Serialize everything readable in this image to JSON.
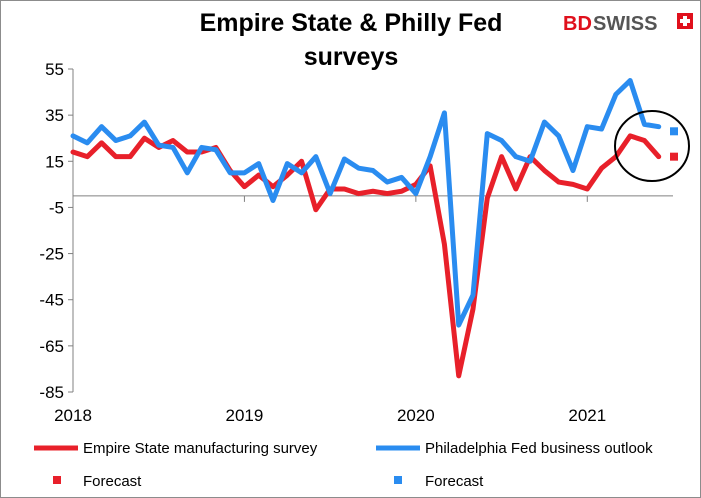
{
  "logo": {
    "brand_part1": "BD",
    "brand_part2": "SWISS"
  },
  "colors": {
    "empire": "#e8202a",
    "philly": "#2a8cf0",
    "annotation": "#000000"
  },
  "chart_data": {
    "type": "line",
    "title_lines": [
      "Empire State & Philly Fed",
      "surveys"
    ],
    "x_axis": {
      "ticks": [
        "2018",
        "2019",
        "2020",
        "2021"
      ],
      "range": [
        "2018-01",
        "2021-07"
      ]
    },
    "y_axis": {
      "ticks": [
        "55",
        "35",
        "15",
        "-5",
        "-25",
        "-45",
        "-65",
        "-85"
      ],
      "range": [
        -85,
        55
      ]
    },
    "x": [
      "2018-01",
      "2018-02",
      "2018-03",
      "2018-04",
      "2018-05",
      "2018-06",
      "2018-07",
      "2018-08",
      "2018-09",
      "2018-10",
      "2018-11",
      "2018-12",
      "2019-01",
      "2019-02",
      "2019-03",
      "2019-04",
      "2019-05",
      "2019-06",
      "2019-07",
      "2019-08",
      "2019-09",
      "2019-10",
      "2019-11",
      "2019-12",
      "2020-01",
      "2020-02",
      "2020-03",
      "2020-04",
      "2020-05",
      "2020-06",
      "2020-07",
      "2020-08",
      "2020-09",
      "2020-10",
      "2020-11",
      "2020-12",
      "2021-01",
      "2021-02",
      "2021-03",
      "2021-04",
      "2021-05",
      "2021-06"
    ],
    "series": [
      {
        "name": "Empire State manufacturing survey",
        "color": "#e8202a",
        "values": [
          19,
          17,
          23,
          17,
          17,
          25,
          21,
          24,
          19,
          19,
          21,
          11,
          4,
          9,
          4,
          9,
          15,
          -6,
          3,
          3,
          1,
          2,
          1,
          2,
          5,
          13,
          -21,
          -78,
          -49,
          -1,
          17,
          3,
          17,
          11,
          6,
          5,
          3,
          12,
          17,
          26,
          24,
          17
        ]
      },
      {
        "name": "Philadelphia Fed business outlook",
        "color": "#2a8cf0",
        "values": [
          26,
          23,
          30,
          24,
          26,
          32,
          22,
          21,
          10,
          21,
          20,
          10,
          10,
          14,
          -2,
          14,
          10,
          17,
          1,
          16,
          12,
          11,
          6,
          8,
          1,
          17,
          36,
          -56,
          -43,
          27,
          24,
          17,
          15,
          32,
          26,
          11,
          30,
          29,
          44,
          50,
          31,
          30
        ]
      }
    ],
    "forecast": [
      {
        "name": "Forecast",
        "series": "Empire State manufacturing survey",
        "x": "2021-07",
        "value": 17,
        "color": "#e8202a"
      },
      {
        "name": "Forecast",
        "series": "Philadelphia Fed business outlook",
        "x": "2021-07",
        "value": 28,
        "color": "#2a8cf0"
      }
    ],
    "annotation": "black ellipse circling both forecast points",
    "legend": {
      "placement": "bottom",
      "entries": [
        {
          "label": "Empire State manufacturing survey",
          "marker": "line",
          "color": "#e8202a"
        },
        {
          "label": "Philadelphia Fed business outlook",
          "marker": "line",
          "color": "#2a8cf0"
        },
        {
          "label": "Forecast",
          "marker": "square",
          "color": "#e8202a"
        },
        {
          "label": "Forecast",
          "marker": "square",
          "color": "#2a8cf0"
        }
      ]
    },
    "grid": false
  }
}
